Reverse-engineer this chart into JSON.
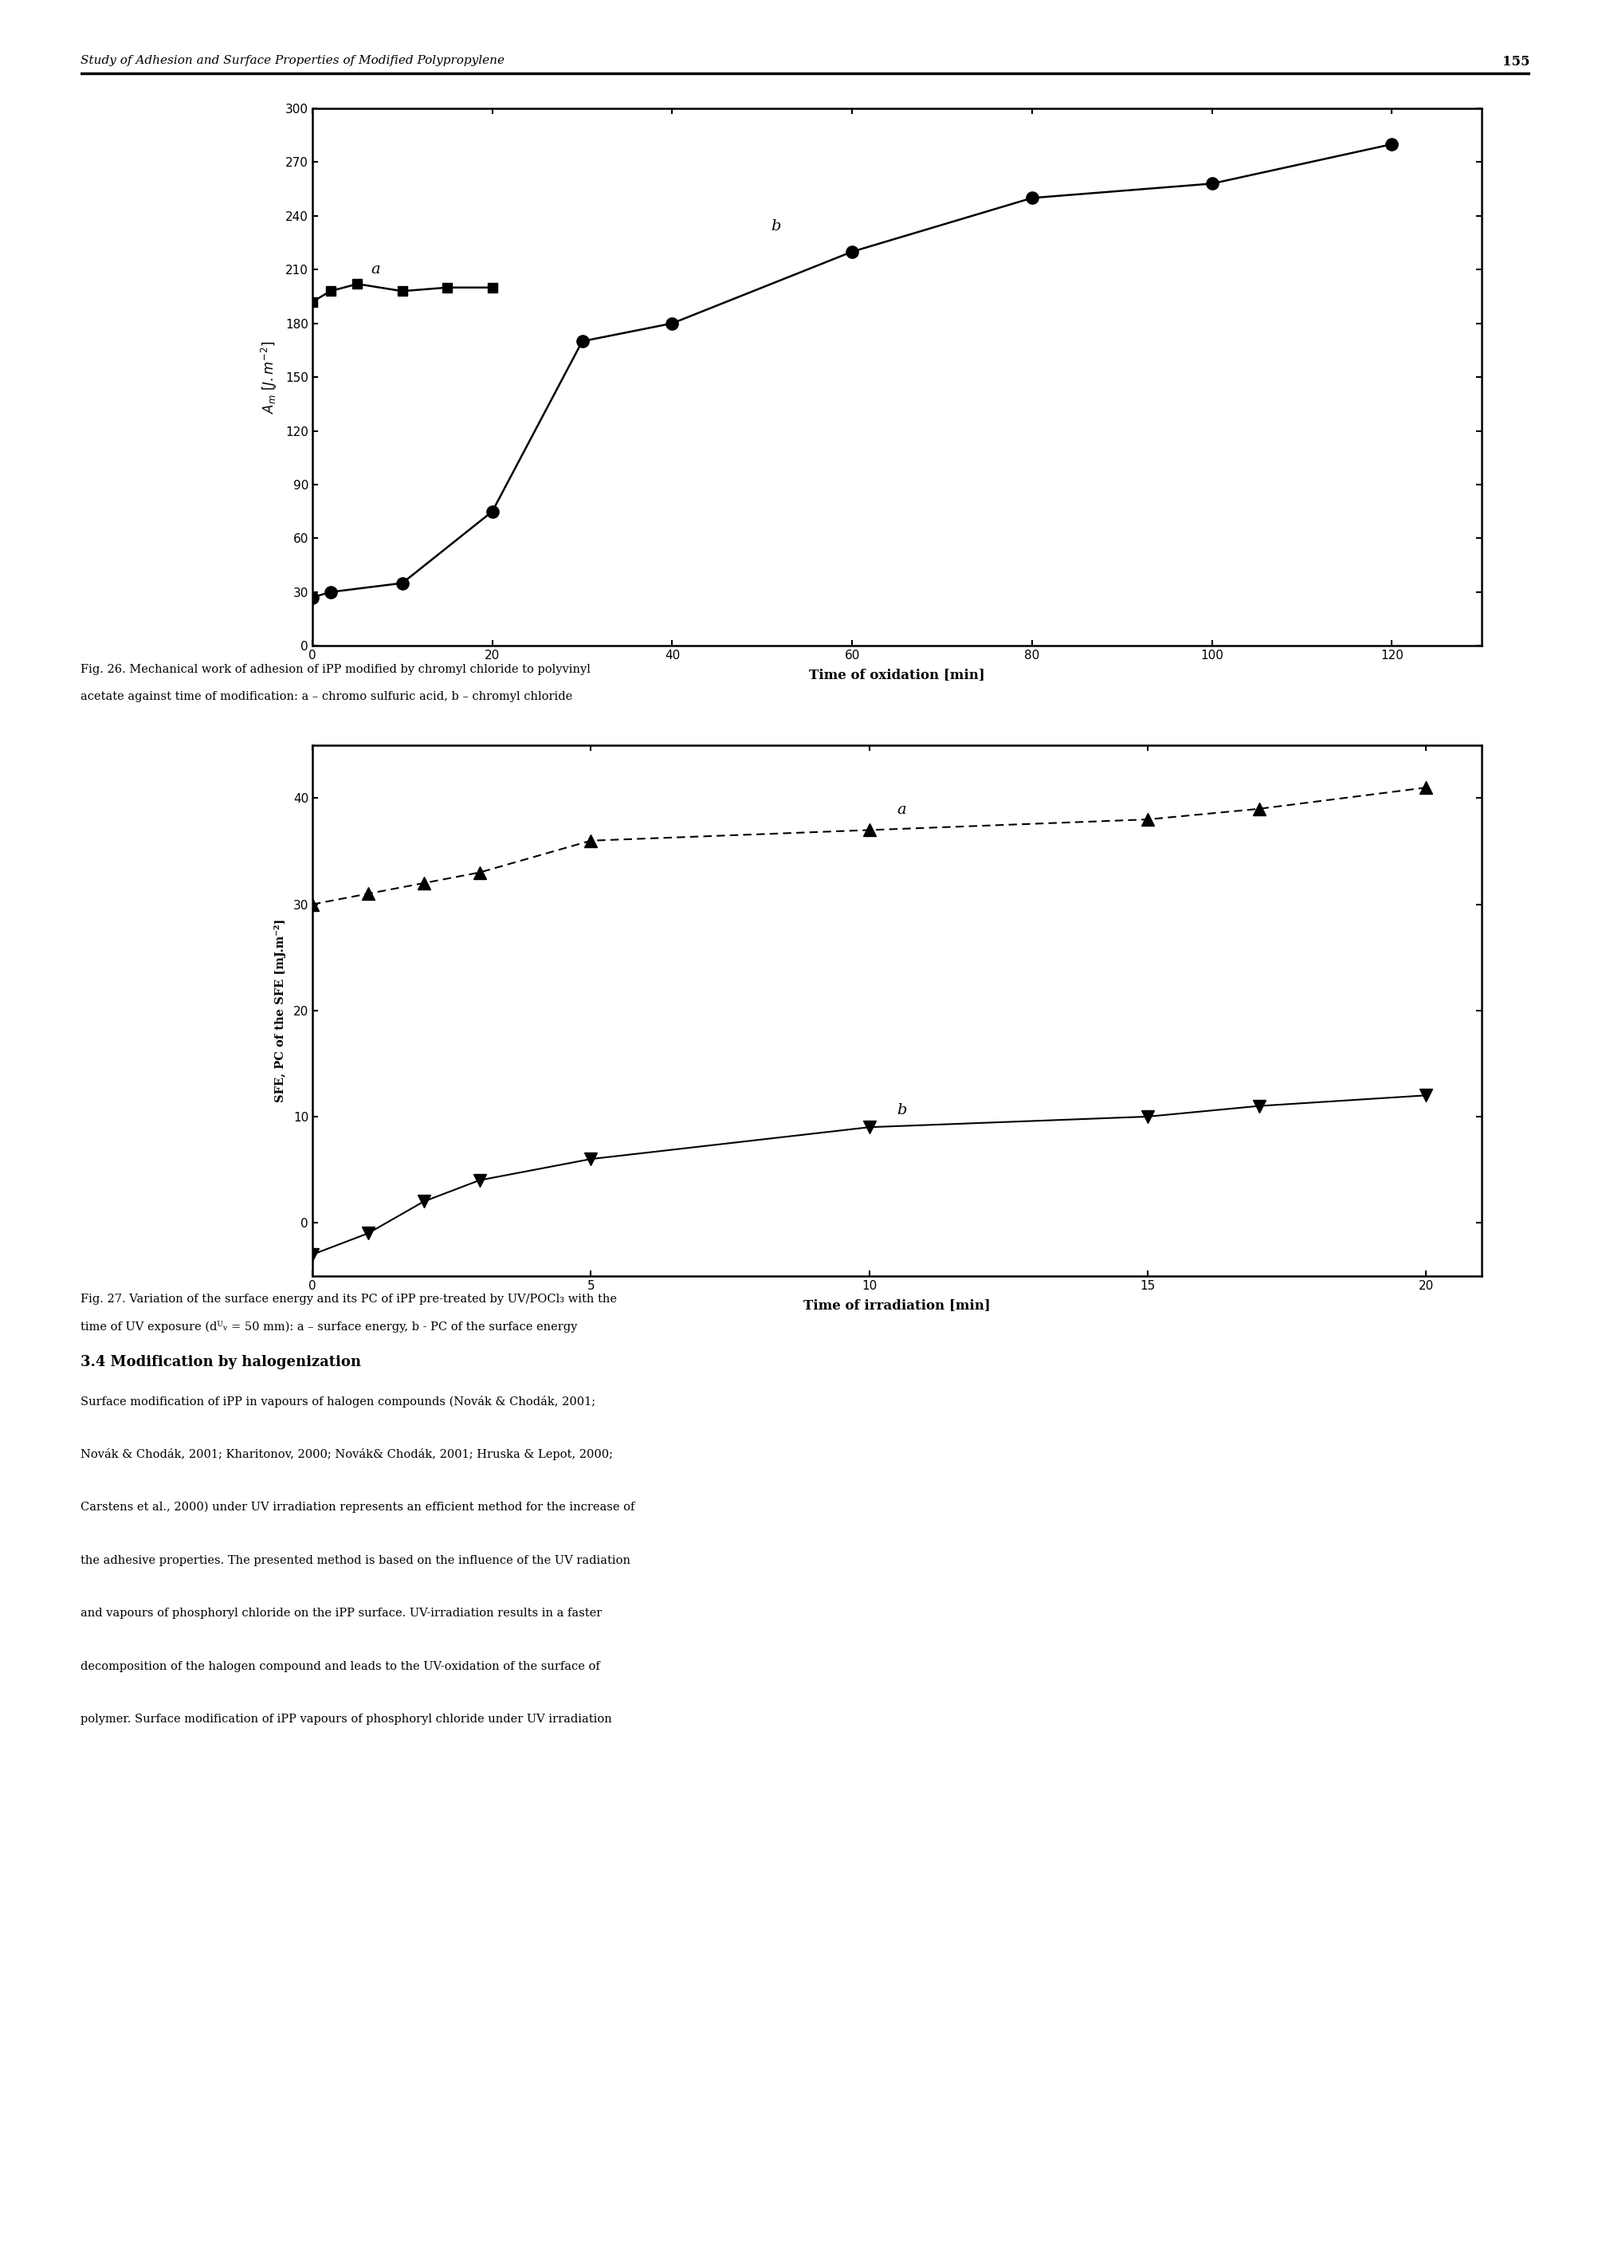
{
  "fig26": {
    "xlabel": "Time of oxidation [min]",
    "xlim": [
      0,
      130
    ],
    "ylim": [
      0,
      300
    ],
    "xticks": [
      0,
      20,
      40,
      60,
      80,
      100,
      120
    ],
    "yticks": [
      0,
      30,
      60,
      90,
      120,
      150,
      180,
      210,
      240,
      270,
      300
    ],
    "series_a_x": [
      0,
      2,
      5,
      10,
      15,
      20
    ],
    "series_a_y": [
      192,
      198,
      202,
      198,
      200,
      200
    ],
    "series_b_x": [
      0,
      2,
      10,
      20,
      30,
      40,
      60,
      80,
      100,
      120
    ],
    "series_b_y": [
      27,
      30,
      35,
      75,
      170,
      180,
      220,
      250,
      258,
      280
    ]
  },
  "fig27": {
    "xlabel": "Time of irradiation [min]",
    "xlim": [
      0,
      21
    ],
    "ylim": [
      -5,
      45
    ],
    "xticks": [
      0,
      5,
      10,
      15,
      20
    ],
    "yticks": [
      0,
      10,
      20,
      30,
      40
    ],
    "series_a_x": [
      0,
      1,
      2,
      3,
      5,
      10,
      15,
      17,
      20
    ],
    "series_a_y": [
      30,
      31,
      32,
      33,
      36,
      37,
      38,
      39,
      41
    ],
    "series_b_x": [
      0,
      1,
      2,
      3,
      5,
      10,
      15,
      17,
      20
    ],
    "series_b_y": [
      -3,
      -1,
      2,
      4,
      6,
      9,
      10,
      11,
      12
    ]
  },
  "page_header": "Study of Adhesion and Surface Properties of Modified Polypropylene",
  "page_number": "155",
  "section_header": "3.4 Modification by halogenization",
  "background_color": "#ffffff",
  "text_color": "#000000"
}
